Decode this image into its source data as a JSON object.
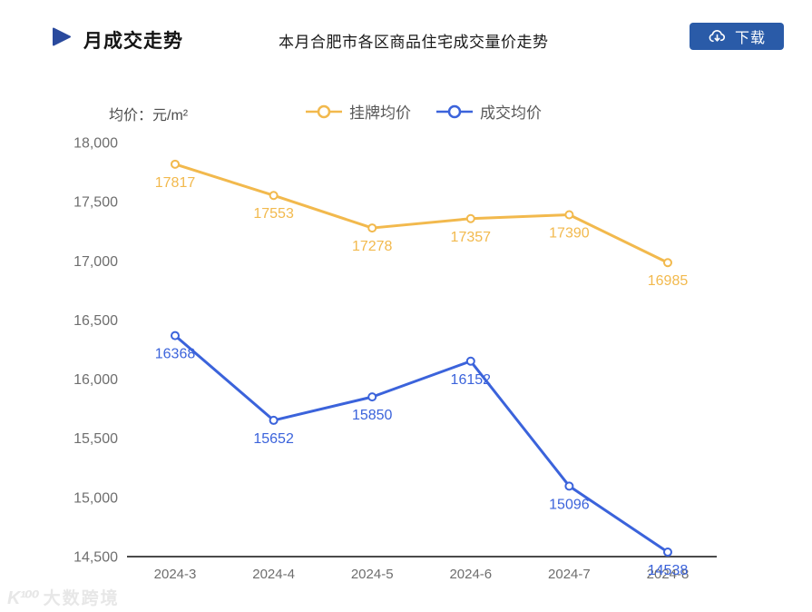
{
  "header": {
    "title": "月成交走势",
    "subtitle": "本月合肥市各区商品住宅成交量价走势",
    "download_button": {
      "label": "下载",
      "icon": "cloud-download-icon",
      "color": "#2a5ba8"
    }
  },
  "unit_label": "均价：元/m²",
  "chart_data": {
    "type": "line",
    "title": "本月合肥市各区商品住宅成交量价走势",
    "xlabel": "",
    "ylabel": "均价：元/m²",
    "categories": [
      "2024-3",
      "2024-4",
      "2024-5",
      "2024-6",
      "2024-7",
      "2024-8"
    ],
    "series": [
      {
        "id": "listing-avg-price",
        "name": "挂牌均价",
        "color": "#f2b94d",
        "values": [
          17817,
          17553,
          17278,
          17357,
          17390,
          16985
        ]
      },
      {
        "id": "deal-avg-price",
        "name": "成交均价",
        "color": "#3b63db",
        "values": [
          16368,
          15652,
          15850,
          16152,
          15096,
          14538
        ]
      }
    ],
    "ylim": [
      14500,
      18000
    ],
    "ytick_step": 500,
    "yticks": [
      "18,000",
      "17,500",
      "17,000",
      "16,500",
      "16,000",
      "15,500",
      "15,000",
      "14,500"
    ],
    "legend_position": "top",
    "legend_entries": [
      "挂牌均价",
      "成交均价"
    ],
    "grid": false
  },
  "watermark": {
    "logo": "K¹⁰⁰",
    "text": "大数跨境"
  },
  "colors": {
    "title_triangle": "#2a4a9d",
    "button_blue": "#2a5ba8",
    "axis_text": "#6e6e6e",
    "axis_line": "#4a4a4a"
  }
}
